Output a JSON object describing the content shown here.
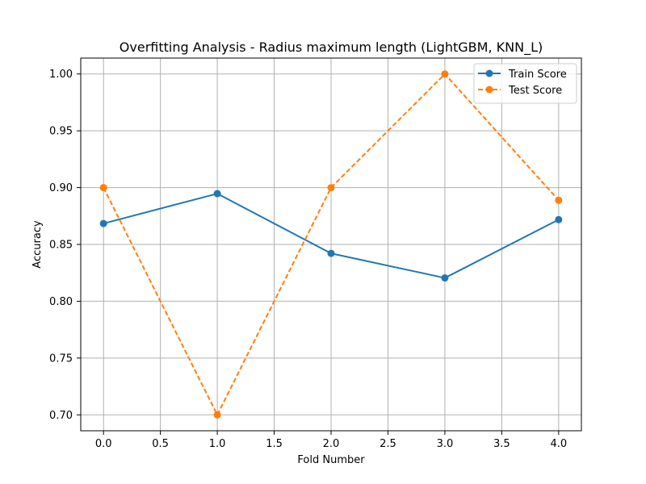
{
  "chart_data": {
    "type": "line",
    "title": "Overfitting Analysis - Radius maximum length (LightGBM, KNN_L)",
    "xlabel": "Fold Number",
    "ylabel": "Accuracy",
    "x": [
      0,
      1,
      2,
      3,
      4
    ],
    "xlim": [
      -0.2,
      4.2
    ],
    "ylim": [
      0.686,
      1.014
    ],
    "xticks": [
      0.0,
      0.5,
      1.0,
      1.5,
      2.0,
      2.5,
      3.0,
      3.5,
      4.0
    ],
    "xtick_labels": [
      "0.0",
      "0.5",
      "1.0",
      "1.5",
      "2.0",
      "2.5",
      "3.0",
      "3.5",
      "4.0"
    ],
    "yticks": [
      0.7,
      0.75,
      0.8,
      0.85,
      0.9,
      0.95,
      1.0
    ],
    "ytick_labels": [
      "0.70",
      "0.75",
      "0.80",
      "0.85",
      "0.90",
      "0.95",
      "1.00"
    ],
    "grid": true,
    "legend_position": "top-right",
    "series": [
      {
        "name": "Train Score",
        "values": [
          0.8684,
          0.8947,
          0.8421,
          0.8205,
          0.8718
        ],
        "color": "#1f77b4",
        "line_style": "solid",
        "marker": "circle"
      },
      {
        "name": "Test Score",
        "values": [
          0.9,
          0.7,
          0.9,
          1.0,
          0.8889
        ],
        "color": "#ff7f0e",
        "line_style": "dashed",
        "marker": "circle"
      }
    ]
  }
}
